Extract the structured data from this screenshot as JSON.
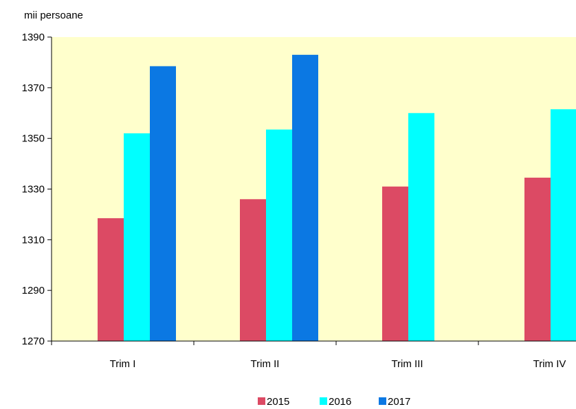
{
  "chart_data": {
    "type": "bar",
    "unit_label": "mii persoane",
    "categories": [
      "Trim I",
      "Trim II",
      "Trim III",
      "Trim IV"
    ],
    "series": [
      {
        "name": "2015",
        "color": "#dc4a64",
        "values": [
          1318.5,
          1326,
          1331,
          1334.5
        ]
      },
      {
        "name": "2016",
        "color": "#00ffff",
        "values": [
          1352,
          1353.5,
          1360,
          1361.5
        ]
      },
      {
        "name": "2017",
        "color": "#0b78e3",
        "values": [
          1378.5,
          1383,
          null,
          null
        ]
      }
    ],
    "ylim": [
      1270,
      1390
    ],
    "yticks": [
      1270,
      1290,
      1310,
      1330,
      1350,
      1370,
      1390
    ],
    "plot_background": "#ffffcc",
    "grid": false,
    "legend_position": "bottom"
  }
}
